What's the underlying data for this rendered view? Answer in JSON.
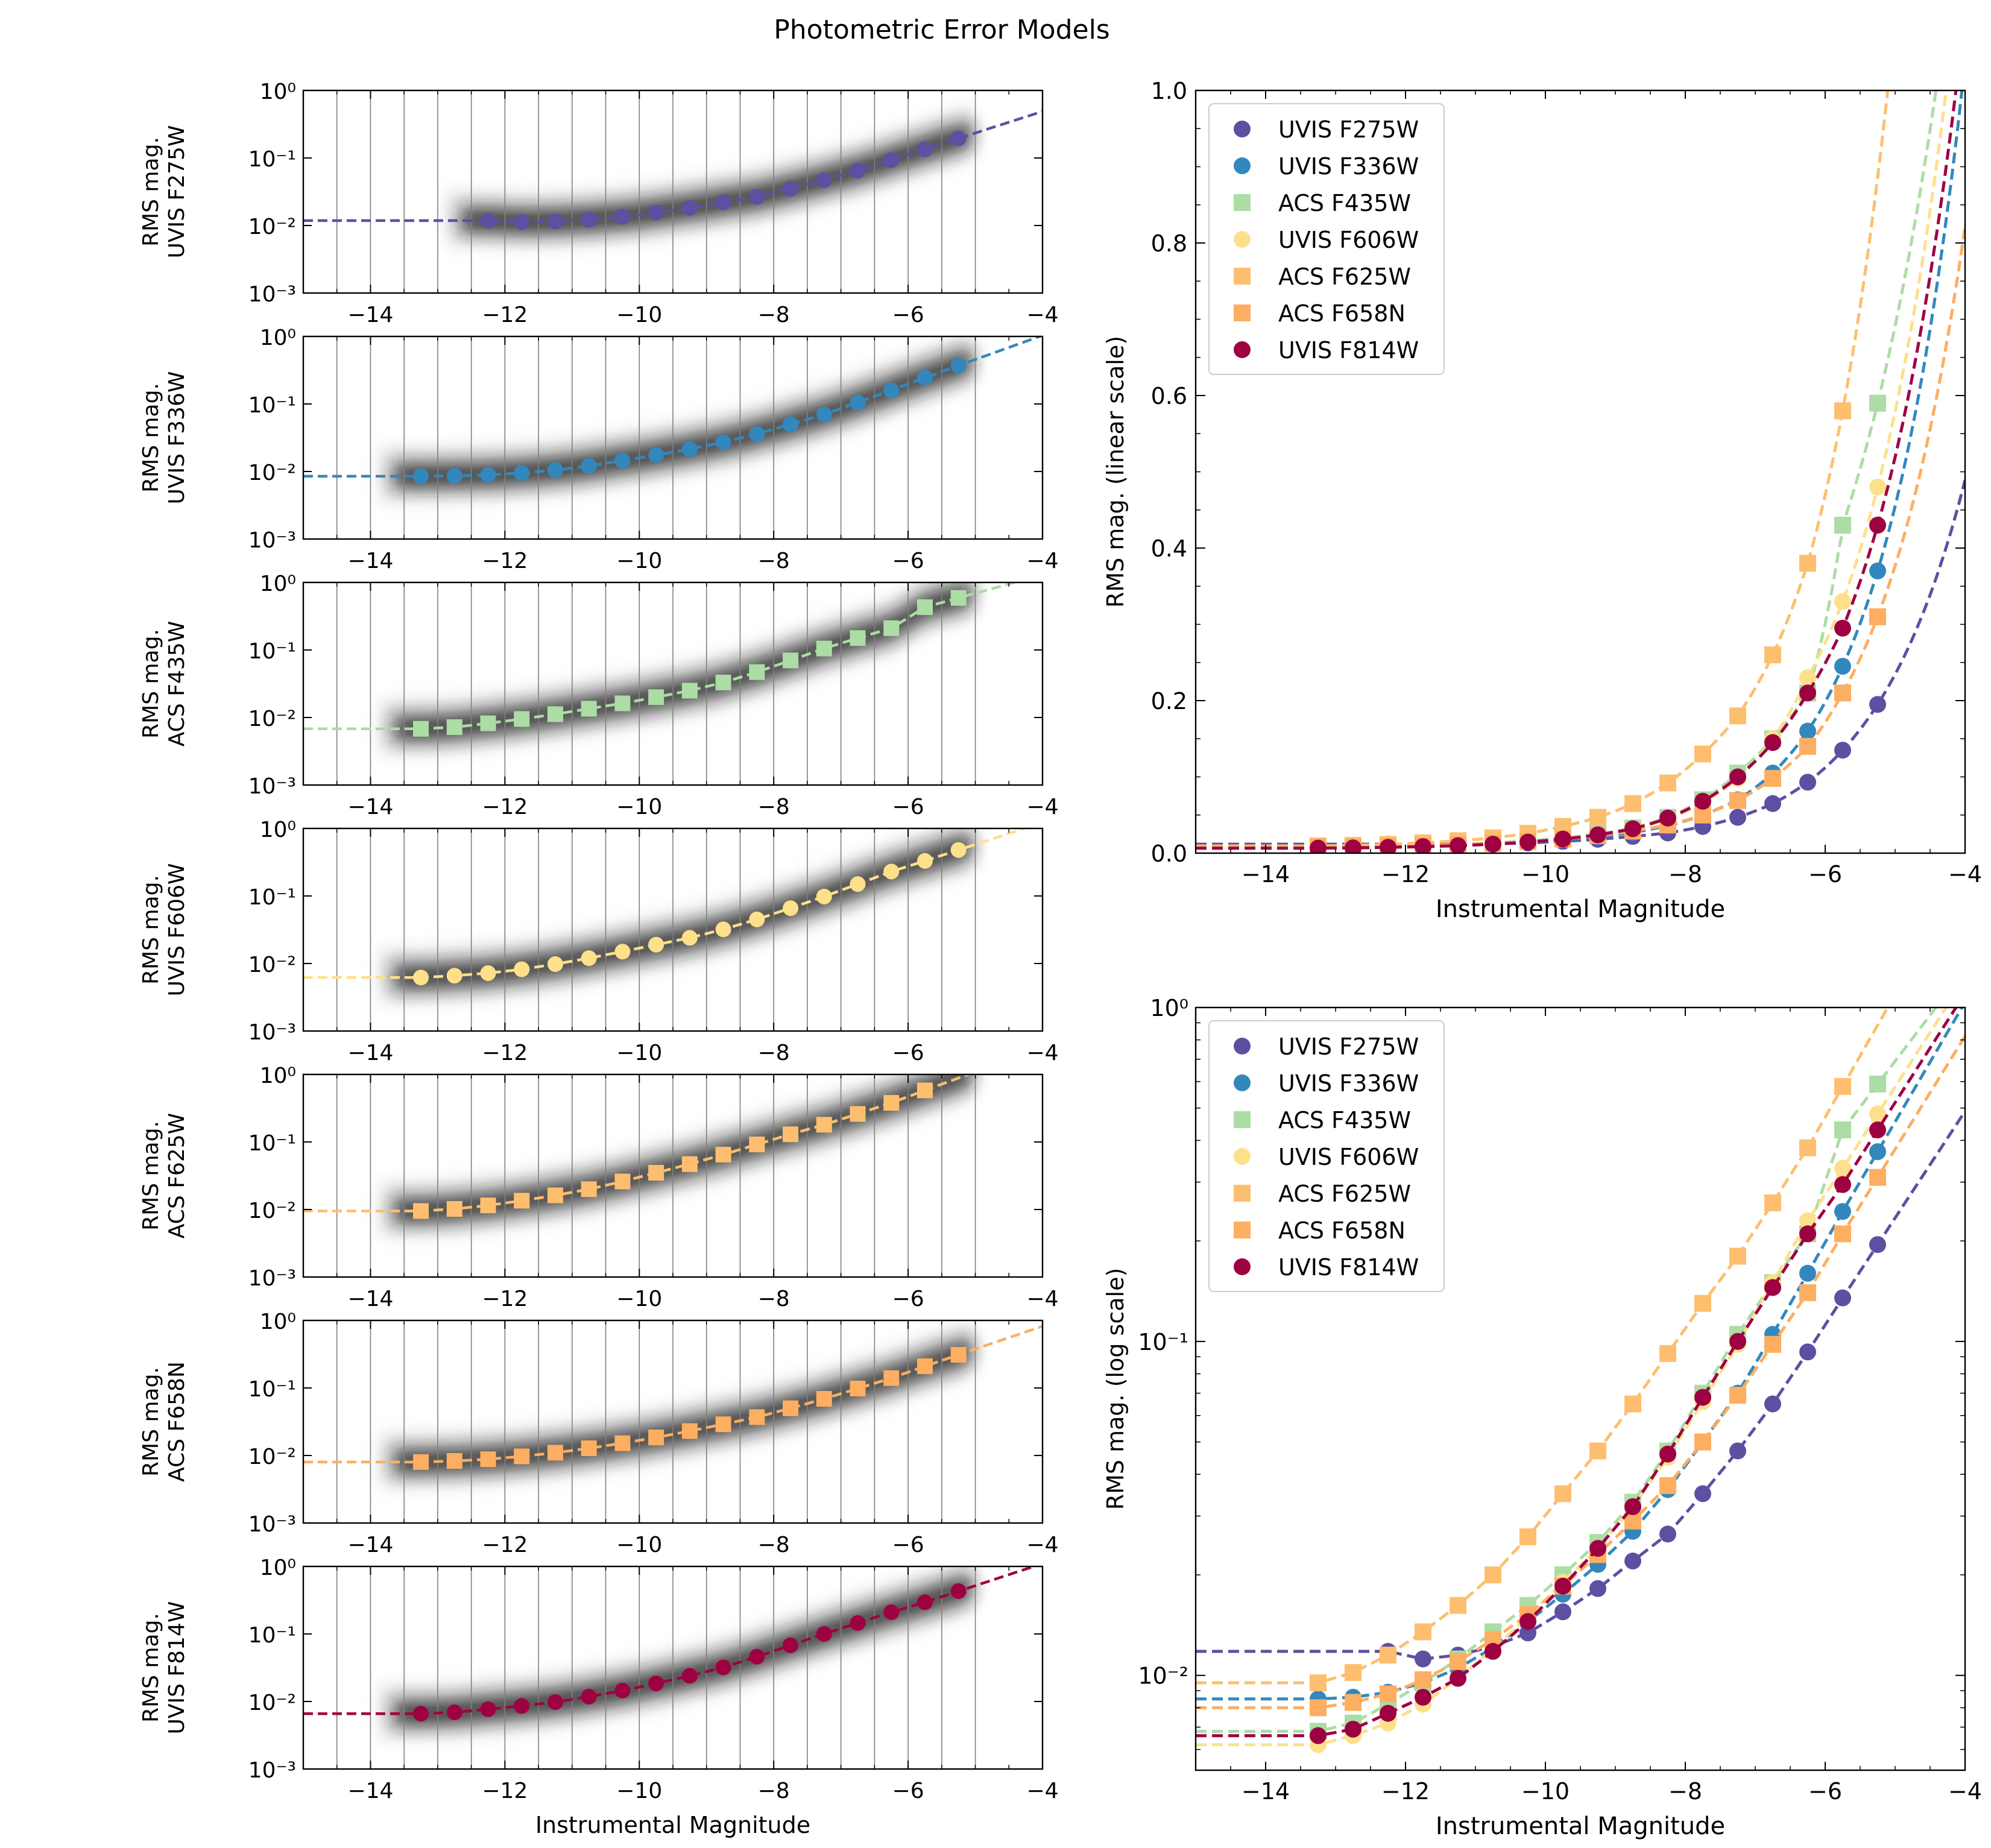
{
  "figure_title": "Photometric Error Models",
  "chart_data": [
    {
      "type": "scatter",
      "panel": "F275W",
      "label": "UVIS F275W",
      "color": "#5e4fa2",
      "marker": "circle",
      "ylabel_1": "RMS mag.",
      "ylabel_2": "UVIS F275W",
      "xlabel": "",
      "xlim": [
        -15,
        -4
      ],
      "ylim": [
        0.001,
        1
      ],
      "yscale": "log",
      "xticks": [
        "−14",
        "−12",
        "−10",
        "−8",
        "−6",
        "−4"
      ],
      "yticks": [
        "10⁻³",
        "10⁻²",
        "10⁻¹",
        "10⁰"
      ],
      "x": [
        -12.25,
        -11.75,
        -11.25,
        -10.75,
        -10.25,
        -9.75,
        -9.25,
        -8.75,
        -8.25,
        -7.75,
        -7.25,
        -6.75,
        -6.25,
        -5.75,
        -5.25
      ],
      "values": [
        0.0118,
        0.0112,
        0.0115,
        0.0122,
        0.0134,
        0.0155,
        0.0182,
        0.022,
        0.0265,
        0.035,
        0.047,
        0.065,
        0.093,
        0.135,
        0.195
      ]
    },
    {
      "type": "scatter",
      "panel": "F336W",
      "label": "UVIS F336W",
      "color": "#3288bd",
      "marker": "circle",
      "ylabel_1": "RMS mag.",
      "ylabel_2": "UVIS F336W",
      "xlabel": "",
      "xlim": [
        -15,
        -4
      ],
      "ylim": [
        0.001,
        1
      ],
      "yscale": "log",
      "xticks": [
        "−14",
        "−12",
        "−10",
        "−8",
        "−6",
        "−4"
      ],
      "yticks": [
        "10⁻³",
        "10⁻²",
        "10⁻¹",
        "10⁰"
      ],
      "x": [
        -13.25,
        -12.75,
        -12.25,
        -11.75,
        -11.25,
        -10.75,
        -10.25,
        -9.75,
        -9.25,
        -8.75,
        -8.25,
        -7.75,
        -7.25,
        -6.75,
        -6.25,
        -5.75,
        -5.25
      ],
      "values": [
        0.0085,
        0.0086,
        0.0089,
        0.0095,
        0.0105,
        0.0121,
        0.0145,
        0.0175,
        0.0215,
        0.027,
        0.036,
        0.05,
        0.07,
        0.105,
        0.16,
        0.245,
        0.37
      ]
    },
    {
      "type": "scatter",
      "panel": "F435W",
      "label": "ACS F435W",
      "color": "#abdda4",
      "marker": "square",
      "ylabel_1": "RMS mag.",
      "ylabel_2": "ACS F435W",
      "xlabel": "",
      "xlim": [
        -15,
        -4
      ],
      "ylim": [
        0.001,
        1
      ],
      "yscale": "log",
      "xticks": [
        "−14",
        "−12",
        "−10",
        "−8",
        "−6",
        "−4"
      ],
      "yticks": [
        "10⁻³",
        "10⁻²",
        "10⁻¹",
        "10⁰"
      ],
      "x": [
        -13.25,
        -12.75,
        -12.25,
        -11.75,
        -11.25,
        -10.75,
        -10.25,
        -9.75,
        -9.25,
        -8.75,
        -8.25,
        -7.75,
        -7.25,
        -6.75,
        -6.25,
        -5.75,
        -5.25
      ],
      "values": [
        0.0068,
        0.0072,
        0.0082,
        0.0095,
        0.0112,
        0.0135,
        0.0162,
        0.02,
        0.025,
        0.033,
        0.047,
        0.07,
        0.105,
        0.15,
        0.21,
        0.43,
        0.59
      ]
    },
    {
      "type": "scatter",
      "panel": "F606W",
      "label": "UVIS F606W",
      "color": "#fee08b",
      "marker": "circle",
      "ylabel_1": "RMS mag.",
      "ylabel_2": "UVIS F606W",
      "xlabel": "",
      "xlim": [
        -15,
        -4
      ],
      "ylim": [
        0.001,
        1
      ],
      "yscale": "log",
      "xticks": [
        "−14",
        "−12",
        "−10",
        "−8",
        "−6",
        "−4"
      ],
      "yticks": [
        "10⁻³",
        "10⁻²",
        "10⁻¹",
        "10⁰"
      ],
      "x": [
        -13.25,
        -12.75,
        -12.25,
        -11.75,
        -11.25,
        -10.75,
        -10.25,
        -9.75,
        -9.25,
        -8.75,
        -8.25,
        -7.75,
        -7.25,
        -6.75,
        -6.25,
        -5.75,
        -5.25
      ],
      "values": [
        0.0062,
        0.0066,
        0.0072,
        0.0082,
        0.0098,
        0.012,
        0.015,
        0.019,
        0.024,
        0.032,
        0.045,
        0.066,
        0.098,
        0.15,
        0.23,
        0.33,
        0.48
      ]
    },
    {
      "type": "scatter",
      "panel": "F625W",
      "label": "ACS F625W",
      "color": "#fdbf6f",
      "marker": "square",
      "ylabel_1": "RMS mag.",
      "ylabel_2": "ACS F625W",
      "xlabel": "",
      "xlim": [
        -15,
        -4
      ],
      "ylim": [
        0.001,
        1
      ],
      "yscale": "log",
      "xticks": [
        "−14",
        "−12",
        "−10",
        "−8",
        "−6",
        "−4"
      ],
      "yticks": [
        "10⁻³",
        "10⁻²",
        "10⁻¹",
        "10⁰"
      ],
      "x": [
        -13.25,
        -12.75,
        -12.25,
        -11.75,
        -11.25,
        -10.75,
        -10.25,
        -9.75,
        -9.25,
        -8.75,
        -8.25,
        -7.75,
        -7.25,
        -6.75,
        -6.25,
        -5.75
      ],
      "values": [
        0.0095,
        0.0102,
        0.0115,
        0.0135,
        0.0162,
        0.02,
        0.026,
        0.035,
        0.047,
        0.065,
        0.092,
        0.13,
        0.18,
        0.26,
        0.38,
        0.58
      ]
    },
    {
      "type": "scatter",
      "panel": "F658N",
      "label": "ACS F658N",
      "color": "#fdae61",
      "marker": "square",
      "ylabel_1": "RMS mag.",
      "ylabel_2": "ACS F658N",
      "xlabel": "",
      "xlim": [
        -15,
        -4
      ],
      "ylim": [
        0.001,
        1
      ],
      "yscale": "log",
      "xticks": [
        "−14",
        "−12",
        "−10",
        "−8",
        "−6",
        "−4"
      ],
      "yticks": [
        "10⁻³",
        "10⁻²",
        "10⁻¹",
        "10⁰"
      ],
      "x": [
        -13.25,
        -12.75,
        -12.25,
        -11.75,
        -11.25,
        -10.75,
        -10.25,
        -9.75,
        -9.25,
        -8.75,
        -8.25,
        -7.75,
        -7.25,
        -6.75,
        -6.25,
        -5.75,
        -5.25
      ],
      "values": [
        0.008,
        0.0083,
        0.0088,
        0.0097,
        0.011,
        0.0128,
        0.0152,
        0.0185,
        0.023,
        0.029,
        0.037,
        0.05,
        0.069,
        0.098,
        0.14,
        0.21,
        0.31
      ]
    },
    {
      "type": "scatter",
      "panel": "F814W",
      "label": "UVIS F814W",
      "color": "#9e0142",
      "marker": "circle",
      "ylabel_1": "RMS mag.",
      "ylabel_2": "UVIS F814W",
      "xlabel": "Instrumental Magnitude",
      "xlim": [
        -15,
        -4
      ],
      "ylim": [
        0.001,
        1
      ],
      "yscale": "log",
      "xticks": [
        "−14",
        "−12",
        "−10",
        "−8",
        "−6",
        "−4"
      ],
      "yticks": [
        "10⁻³",
        "10⁻²",
        "10⁻¹",
        "10⁰"
      ],
      "x": [
        -13.25,
        -12.75,
        -12.25,
        -11.75,
        -11.25,
        -10.75,
        -10.25,
        -9.75,
        -9.25,
        -8.75,
        -8.25,
        -7.75,
        -7.25,
        -6.75,
        -6.25,
        -5.75,
        -5.25
      ],
      "values": [
        0.0066,
        0.0069,
        0.0077,
        0.0086,
        0.0098,
        0.0118,
        0.0145,
        0.0185,
        0.024,
        0.032,
        0.046,
        0.068,
        0.1,
        0.145,
        0.21,
        0.295,
        0.43
      ]
    },
    {
      "type": "line",
      "panel": "combined-linear",
      "ylabel": "RMS mag. (linear scale)",
      "xlabel": "Instrumental Magnitude",
      "xlim": [
        -15,
        -4
      ],
      "ylim": [
        0,
        1.0
      ],
      "yscale": "linear",
      "xticks": [
        "−14",
        "−12",
        "−10",
        "−8",
        "−6",
        "−4"
      ],
      "yticks": [
        "0.0",
        "0.2",
        "0.4",
        "0.6",
        "0.8",
        "1.0"
      ],
      "legend": "upper-left",
      "legend_labels": [
        "UVIS F275W",
        "UVIS F336W",
        "ACS F435W",
        "UVIS F606W",
        "ACS F625W",
        "ACS F658N",
        "UVIS F814W"
      ]
    },
    {
      "type": "line",
      "panel": "combined-log",
      "ylabel": "RMS mag. (log scale)",
      "xlabel": "Instrumental Magnitude",
      "xlim": [
        -15,
        -4
      ],
      "ylim": [
        0.0052,
        1.0
      ],
      "yscale": "log",
      "xticks": [
        "−14",
        "−12",
        "−10",
        "−8",
        "−6",
        "−4"
      ],
      "yticks": [
        "10⁻²",
        "10⁻¹",
        "10⁰"
      ],
      "legend": "upper-left",
      "legend_labels": [
        "UVIS F275W",
        "UVIS F336W",
        "ACS F435W",
        "UVIS F606W",
        "ACS F625W",
        "ACS F658N",
        "UVIS F814W"
      ]
    }
  ]
}
